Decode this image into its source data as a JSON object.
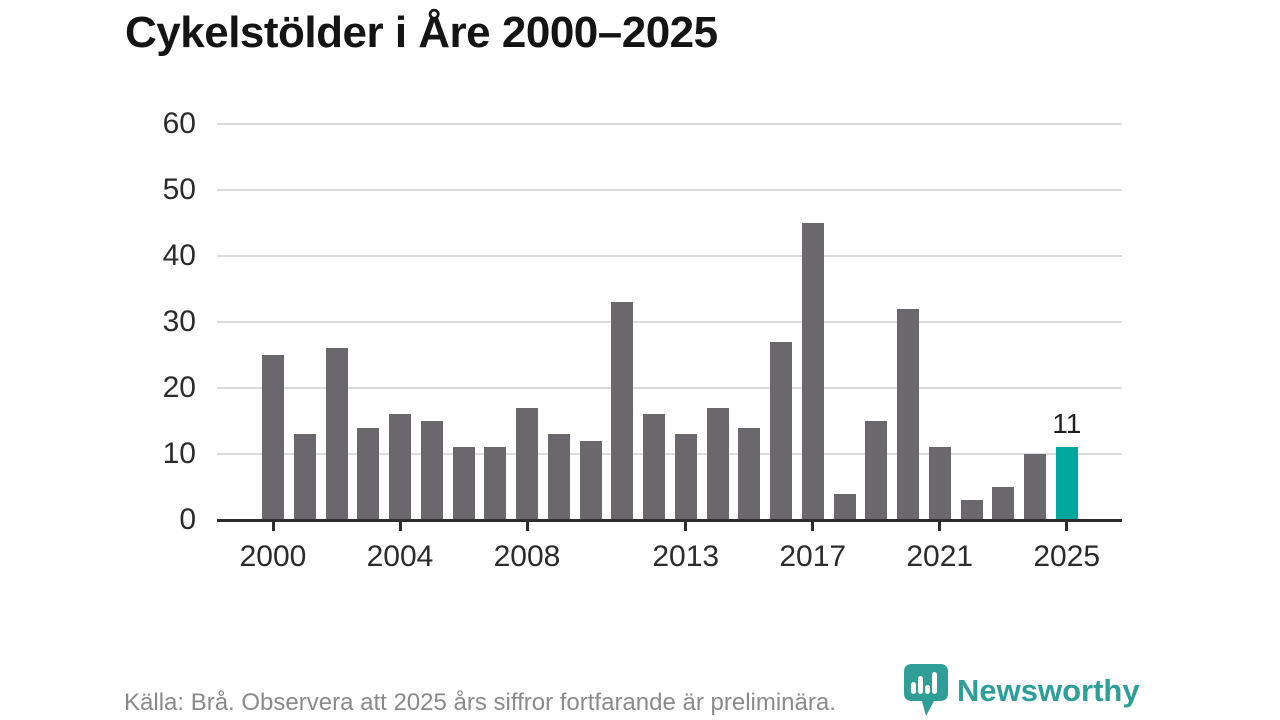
{
  "title": "Cykelstölder i Åre 2000–2025",
  "chart_data": {
    "type": "bar",
    "title": "Cykelstölder i Åre 2000–2025",
    "categories": [
      2000,
      2001,
      2002,
      2003,
      2004,
      2005,
      2006,
      2007,
      2008,
      2009,
      2010,
      2011,
      2012,
      2013,
      2014,
      2015,
      2016,
      2017,
      2018,
      2019,
      2020,
      2021,
      2022,
      2023,
      2024,
      2025
    ],
    "values": [
      25,
      13,
      26,
      14,
      16,
      15,
      11,
      11,
      17,
      13,
      12,
      33,
      16,
      13,
      17,
      14,
      27,
      45,
      4,
      15,
      32,
      11,
      3,
      5,
      10,
      11
    ],
    "xlabel": "",
    "ylabel": "",
    "ylim": [
      0,
      60
    ],
    "y_ticks": [
      0,
      10,
      20,
      30,
      40,
      50,
      60
    ],
    "x_tick_labels": [
      "2000",
      "2004",
      "2008",
      "2013",
      "2017",
      "2021",
      "2025"
    ],
    "grid": "horizontal",
    "legend": "none",
    "bar_color": "#6b686d",
    "highlight_color": "#00a79d",
    "highlight_category": 2025,
    "value_labels": [
      {
        "category": 2025,
        "label": "11"
      }
    ],
    "gridline_color": "#dcdcdc",
    "axis_color": "#2d2d2d"
  },
  "footer": {
    "source": "Källa: Brå. Observera att 2025 års siffror fortfarande är preliminära."
  },
  "logo": {
    "text": "Newsworthy",
    "icon": "newsworthy-pin-bar-chart-icon",
    "color": "#2f9e97"
  }
}
